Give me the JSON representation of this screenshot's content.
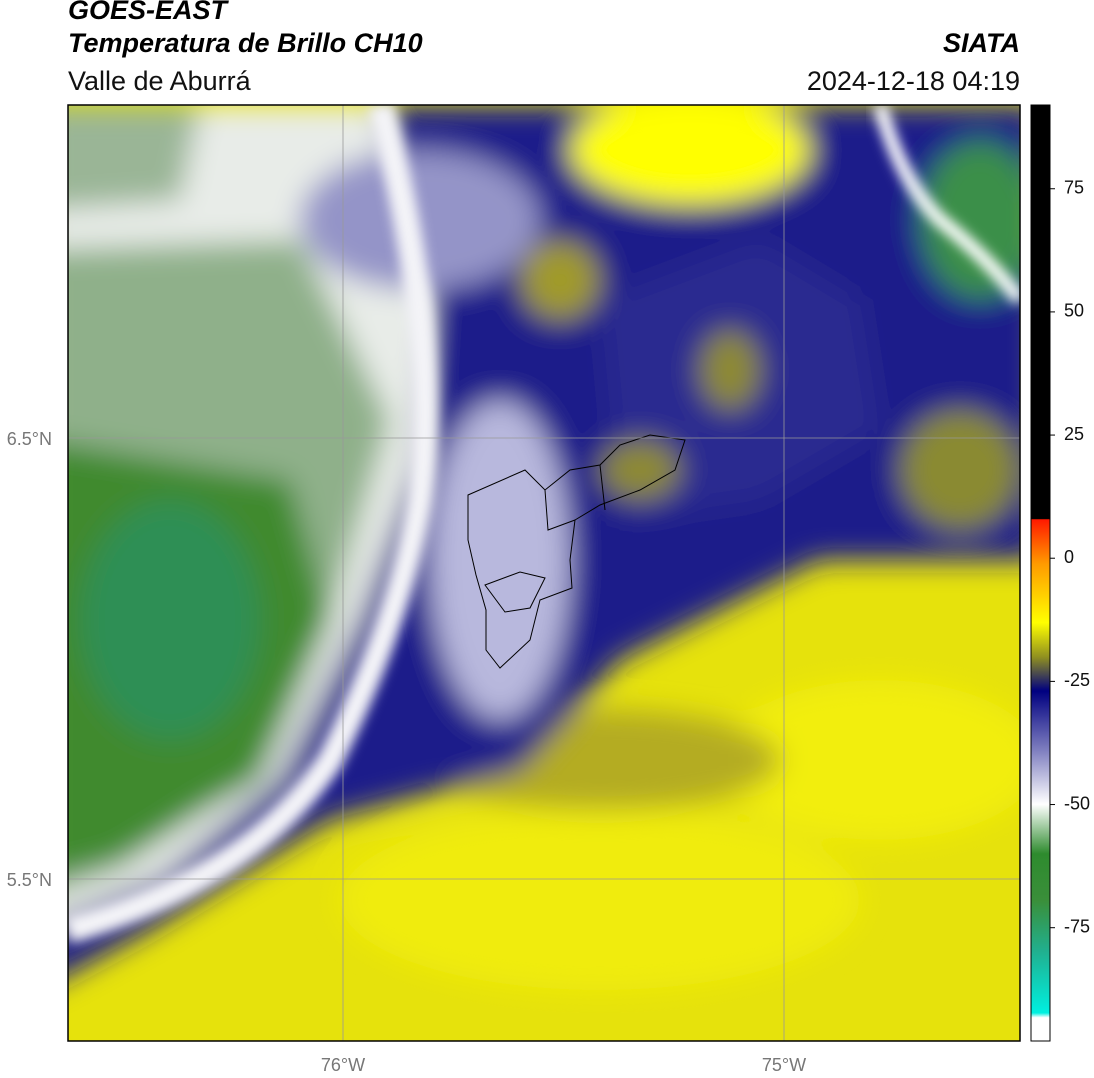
{
  "header": {
    "title": "GOES-EAST",
    "subtitle": "Temperatura de Brillo CH10",
    "region": "Valle de Aburrá",
    "source": "SIATA",
    "datetime": "2024-12-18 04:19"
  },
  "map": {
    "lat_labels": [
      "6.5°N",
      "5.5°N"
    ],
    "lon_labels": [
      "76°W",
      "75°W"
    ]
  },
  "colorbar": {
    "range": [
      -98,
      92
    ],
    "ticks": [
      75,
      50,
      25,
      0,
      -25,
      -50,
      -75
    ]
  }
}
